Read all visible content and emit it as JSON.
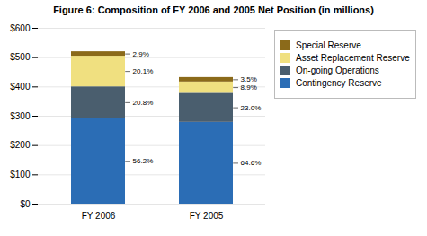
{
  "chart_data": {
    "type": "bar",
    "title": "Figure 6: Composition of FY 2006 and 2005 Net Position (in millions)",
    "categories": [
      "FY 2006",
      "FY 2005"
    ],
    "series": [
      {
        "name": "Contingency Reserve",
        "color": "#2B6DB5",
        "values": [
          292.24,
          279.072
        ],
        "labels": [
          "56.2%",
          "64.6%"
        ]
      },
      {
        "name": "On-going Operations",
        "color": "#4A5E6E",
        "values": [
          108.16,
          99.36
        ],
        "labels": [
          "20.8%",
          "23.0%"
        ]
      },
      {
        "name": "Asset Replacement Reserve",
        "color": "#F0E080",
        "values": [
          104.52,
          38.448
        ],
        "labels": [
          "20.1%",
          "8.9%"
        ]
      },
      {
        "name": "Special Reserve",
        "color": "#8B6A1A",
        "values": [
          15.08,
          15.12
        ],
        "labels": [
          "2.9%",
          "3.5%"
        ]
      }
    ],
    "stacked": true,
    "ylim": [
      0,
      600
    ],
    "yticks": [
      {
        "value": 0,
        "label": "$0"
      },
      {
        "value": 100,
        "label": "$100"
      },
      {
        "value": 200,
        "label": "$200"
      },
      {
        "value": 300,
        "label": "$300"
      },
      {
        "value": 400,
        "label": "$400"
      },
      {
        "value": 500,
        "label": "$500"
      },
      {
        "value": 600,
        "label": "$600"
      }
    ],
    "grid": true,
    "legend": "right"
  }
}
